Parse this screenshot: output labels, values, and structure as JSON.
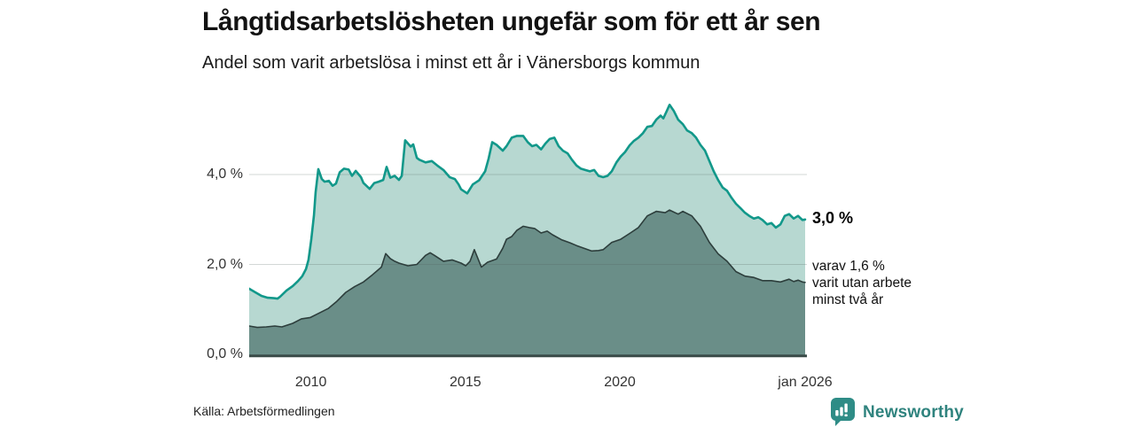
{
  "header": {
    "title": "Långtidsarbetslösheten ungefär som för ett år sen",
    "subtitle": "Andel som varit arbetslösa i minst ett år i Vänersborgs kommun"
  },
  "annotations": {
    "total_end_label": "3,0 %",
    "two_year_end_label_lines": [
      "varav 1,6 %",
      "varit utan arbete",
      "minst två år"
    ]
  },
  "footer": {
    "source": "Källa: Arbetsförmedlingen",
    "brand_name": "Newsworthy",
    "brand_icon": "newsworthy-speech-bubble-barchart-icon",
    "brand_icon_color": "#2E8C86",
    "brand_text_color": "#2F837E"
  },
  "colors": {
    "area_total_fill": "#B7D8D1",
    "area_total_line": "#12988A",
    "area_two_year_fill": "#6A8E88",
    "area_two_year_line": "#2D3E3C",
    "gridline": "rgba(80,95,90,0.25)",
    "baseline": "#3A4B48"
  },
  "chart_data": {
    "type": "area",
    "title": "Långtidsarbetslösheten ungefär som för ett år sen",
    "subtitle": "Andel som varit arbetslösa i minst ett år i Vänersborgs kommun",
    "x_axis": {
      "range": [
        2008.0,
        2026.0
      ],
      "ticks": [
        {
          "t": 2010,
          "label": "2010"
        },
        {
          "t": 2015,
          "label": "2015"
        },
        {
          "t": 2020,
          "label": "2020"
        },
        {
          "t": 2026,
          "label": "jan 2026"
        }
      ]
    },
    "y_axis": {
      "unit": "%",
      "range": [
        0,
        5.9
      ],
      "gridlines": [
        2,
        4
      ],
      "ticks": [
        {
          "v": 0,
          "label": "0,0 %"
        },
        {
          "v": 2,
          "label": "2,0 %"
        },
        {
          "v": 4,
          "label": "4,0 %"
        }
      ]
    },
    "legend_position": "end-of-line-labels",
    "grid": true,
    "series": [
      {
        "name": "Andel arbetslösa minst ett år",
        "end_value": 3.0,
        "end_label": "3,0 %",
        "points": [
          [
            2008.0,
            1.46
          ],
          [
            2008.2,
            1.38
          ],
          [
            2008.4,
            1.3
          ],
          [
            2008.6,
            1.26
          ],
          [
            2008.8,
            1.25
          ],
          [
            2008.92,
            1.24
          ],
          [
            2009.0,
            1.28
          ],
          [
            2009.21,
            1.42
          ],
          [
            2009.41,
            1.52
          ],
          [
            2009.58,
            1.63
          ],
          [
            2009.72,
            1.74
          ],
          [
            2009.84,
            1.9
          ],
          [
            2009.92,
            2.1
          ],
          [
            2010.01,
            2.55
          ],
          [
            2010.1,
            3.1
          ],
          [
            2010.15,
            3.6
          ],
          [
            2010.24,
            4.12
          ],
          [
            2010.35,
            3.9
          ],
          [
            2010.44,
            3.84
          ],
          [
            2010.58,
            3.86
          ],
          [
            2010.7,
            3.75
          ],
          [
            2010.81,
            3.8
          ],
          [
            2010.93,
            4.05
          ],
          [
            2011.07,
            4.13
          ],
          [
            2011.22,
            4.11
          ],
          [
            2011.33,
            3.97
          ],
          [
            2011.45,
            4.08
          ],
          [
            2011.62,
            3.94
          ],
          [
            2011.7,
            3.81
          ],
          [
            2011.9,
            3.68
          ],
          [
            2012.05,
            3.81
          ],
          [
            2012.19,
            3.84
          ],
          [
            2012.34,
            3.88
          ],
          [
            2012.45,
            4.17
          ],
          [
            2012.57,
            3.93
          ],
          [
            2012.71,
            3.97
          ],
          [
            2012.85,
            3.88
          ],
          [
            2012.94,
            3.97
          ],
          [
            2013.05,
            4.76
          ],
          [
            2013.23,
            4.62
          ],
          [
            2013.31,
            4.67
          ],
          [
            2013.43,
            4.37
          ],
          [
            2013.51,
            4.33
          ],
          [
            2013.71,
            4.27
          ],
          [
            2013.91,
            4.3
          ],
          [
            2014.09,
            4.2
          ],
          [
            2014.29,
            4.1
          ],
          [
            2014.49,
            3.94
          ],
          [
            2014.66,
            3.9
          ],
          [
            2014.78,
            3.78
          ],
          [
            2014.86,
            3.67
          ],
          [
            2015.06,
            3.58
          ],
          [
            2015.24,
            3.78
          ],
          [
            2015.44,
            3.87
          ],
          [
            2015.64,
            4.07
          ],
          [
            2015.75,
            4.35
          ],
          [
            2015.87,
            4.72
          ],
          [
            2016.01,
            4.66
          ],
          [
            2016.21,
            4.53
          ],
          [
            2016.33,
            4.63
          ],
          [
            2016.5,
            4.82
          ],
          [
            2016.67,
            4.86
          ],
          [
            2016.87,
            4.86
          ],
          [
            2017.02,
            4.72
          ],
          [
            2017.16,
            4.63
          ],
          [
            2017.3,
            4.66
          ],
          [
            2017.45,
            4.56
          ],
          [
            2017.59,
            4.69
          ],
          [
            2017.73,
            4.79
          ],
          [
            2017.88,
            4.82
          ],
          [
            2018.02,
            4.63
          ],
          [
            2018.16,
            4.53
          ],
          [
            2018.31,
            4.47
          ],
          [
            2018.45,
            4.33
          ],
          [
            2018.6,
            4.2
          ],
          [
            2018.74,
            4.13
          ],
          [
            2018.88,
            4.1
          ],
          [
            2019.03,
            4.07
          ],
          [
            2019.17,
            4.1
          ],
          [
            2019.31,
            3.97
          ],
          [
            2019.46,
            3.94
          ],
          [
            2019.6,
            3.97
          ],
          [
            2019.74,
            4.07
          ],
          [
            2019.89,
            4.27
          ],
          [
            2020.03,
            4.4
          ],
          [
            2020.17,
            4.5
          ],
          [
            2020.32,
            4.65
          ],
          [
            2020.46,
            4.75
          ],
          [
            2020.6,
            4.82
          ],
          [
            2020.75,
            4.92
          ],
          [
            2020.89,
            5.06
          ],
          [
            2021.04,
            5.08
          ],
          [
            2021.18,
            5.22
          ],
          [
            2021.32,
            5.31
          ],
          [
            2021.41,
            5.25
          ],
          [
            2021.52,
            5.41
          ],
          [
            2021.61,
            5.55
          ],
          [
            2021.75,
            5.41
          ],
          [
            2021.89,
            5.22
          ],
          [
            2022.04,
            5.12
          ],
          [
            2022.18,
            4.98
          ],
          [
            2022.33,
            4.92
          ],
          [
            2022.47,
            4.82
          ],
          [
            2022.61,
            4.66
          ],
          [
            2022.76,
            4.53
          ],
          [
            2022.9,
            4.3
          ],
          [
            2023.04,
            4.07
          ],
          [
            2023.19,
            3.87
          ],
          [
            2023.33,
            3.71
          ],
          [
            2023.47,
            3.64
          ],
          [
            2023.62,
            3.48
          ],
          [
            2023.76,
            3.35
          ],
          [
            2023.91,
            3.25
          ],
          [
            2024.05,
            3.15
          ],
          [
            2024.19,
            3.08
          ],
          [
            2024.34,
            3.02
          ],
          [
            2024.48,
            3.05
          ],
          [
            2024.62,
            2.99
          ],
          [
            2024.77,
            2.89
          ],
          [
            2024.91,
            2.92
          ],
          [
            2025.05,
            2.82
          ],
          [
            2025.2,
            2.89
          ],
          [
            2025.34,
            3.08
          ],
          [
            2025.48,
            3.12
          ],
          [
            2025.63,
            3.02
          ],
          [
            2025.77,
            3.08
          ],
          [
            2025.91,
            2.99
          ],
          [
            2026.0,
            3.0
          ]
        ]
      },
      {
        "name": "varav utan arbete minst två år",
        "end_value": 1.6,
        "end_label": "varav 1,6 % varit utan arbete minst två år",
        "points": [
          [
            2008.0,
            0.63
          ],
          [
            2008.26,
            0.6
          ],
          [
            2008.55,
            0.61
          ],
          [
            2008.83,
            0.63
          ],
          [
            2009.06,
            0.61
          ],
          [
            2009.41,
            0.69
          ],
          [
            2009.69,
            0.79
          ],
          [
            2009.98,
            0.82
          ],
          [
            2010.27,
            0.92
          ],
          [
            2010.56,
            1.02
          ],
          [
            2010.84,
            1.18
          ],
          [
            2011.13,
            1.38
          ],
          [
            2011.42,
            1.51
          ],
          [
            2011.7,
            1.61
          ],
          [
            2011.99,
            1.77
          ],
          [
            2012.28,
            1.94
          ],
          [
            2012.42,
            2.24
          ],
          [
            2012.57,
            2.13
          ],
          [
            2012.71,
            2.07
          ],
          [
            2012.85,
            2.03
          ],
          [
            2013.14,
            1.97
          ],
          [
            2013.43,
            2.0
          ],
          [
            2013.71,
            2.2
          ],
          [
            2013.86,
            2.26
          ],
          [
            2014.0,
            2.2
          ],
          [
            2014.29,
            2.07
          ],
          [
            2014.57,
            2.1
          ],
          [
            2014.86,
            2.03
          ],
          [
            2015.01,
            1.97
          ],
          [
            2015.15,
            2.07
          ],
          [
            2015.29,
            2.33
          ],
          [
            2015.52,
            1.94
          ],
          [
            2015.72,
            2.05
          ],
          [
            2016.01,
            2.12
          ],
          [
            2016.21,
            2.36
          ],
          [
            2016.33,
            2.56
          ],
          [
            2016.5,
            2.62
          ],
          [
            2016.67,
            2.76
          ],
          [
            2016.87,
            2.85
          ],
          [
            2017.07,
            2.82
          ],
          [
            2017.24,
            2.8
          ],
          [
            2017.45,
            2.7
          ],
          [
            2017.65,
            2.74
          ],
          [
            2017.82,
            2.66
          ],
          [
            2018.11,
            2.55
          ],
          [
            2018.39,
            2.48
          ],
          [
            2018.6,
            2.42
          ],
          [
            2018.88,
            2.35
          ],
          [
            2019.08,
            2.3
          ],
          [
            2019.31,
            2.31
          ],
          [
            2019.46,
            2.33
          ],
          [
            2019.74,
            2.49
          ],
          [
            2020.03,
            2.56
          ],
          [
            2020.32,
            2.69
          ],
          [
            2020.6,
            2.82
          ],
          [
            2020.89,
            3.08
          ],
          [
            2021.18,
            3.18
          ],
          [
            2021.47,
            3.15
          ],
          [
            2021.61,
            3.21
          ],
          [
            2021.89,
            3.12
          ],
          [
            2022.04,
            3.18
          ],
          [
            2022.33,
            3.08
          ],
          [
            2022.61,
            2.85
          ],
          [
            2022.9,
            2.49
          ],
          [
            2023.19,
            2.23
          ],
          [
            2023.47,
            2.07
          ],
          [
            2023.76,
            1.84
          ],
          [
            2024.05,
            1.74
          ],
          [
            2024.34,
            1.71
          ],
          [
            2024.62,
            1.64
          ],
          [
            2024.91,
            1.64
          ],
          [
            2025.2,
            1.61
          ],
          [
            2025.48,
            1.67
          ],
          [
            2025.63,
            1.62
          ],
          [
            2025.77,
            1.65
          ],
          [
            2025.91,
            1.61
          ],
          [
            2026.0,
            1.6
          ]
        ]
      }
    ]
  }
}
